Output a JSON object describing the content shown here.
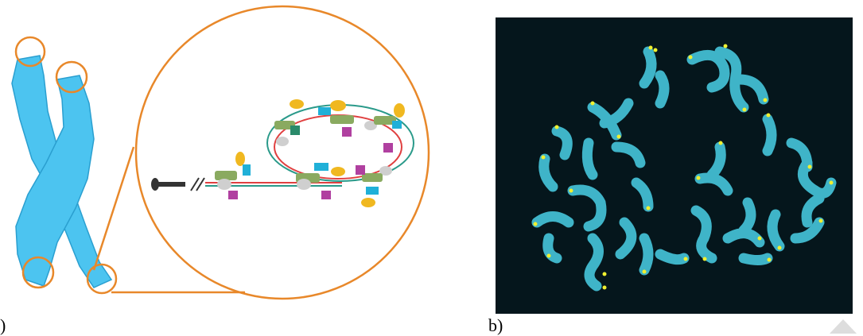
{
  "labels": {
    "a": ")",
    "b": "b)"
  }
}
